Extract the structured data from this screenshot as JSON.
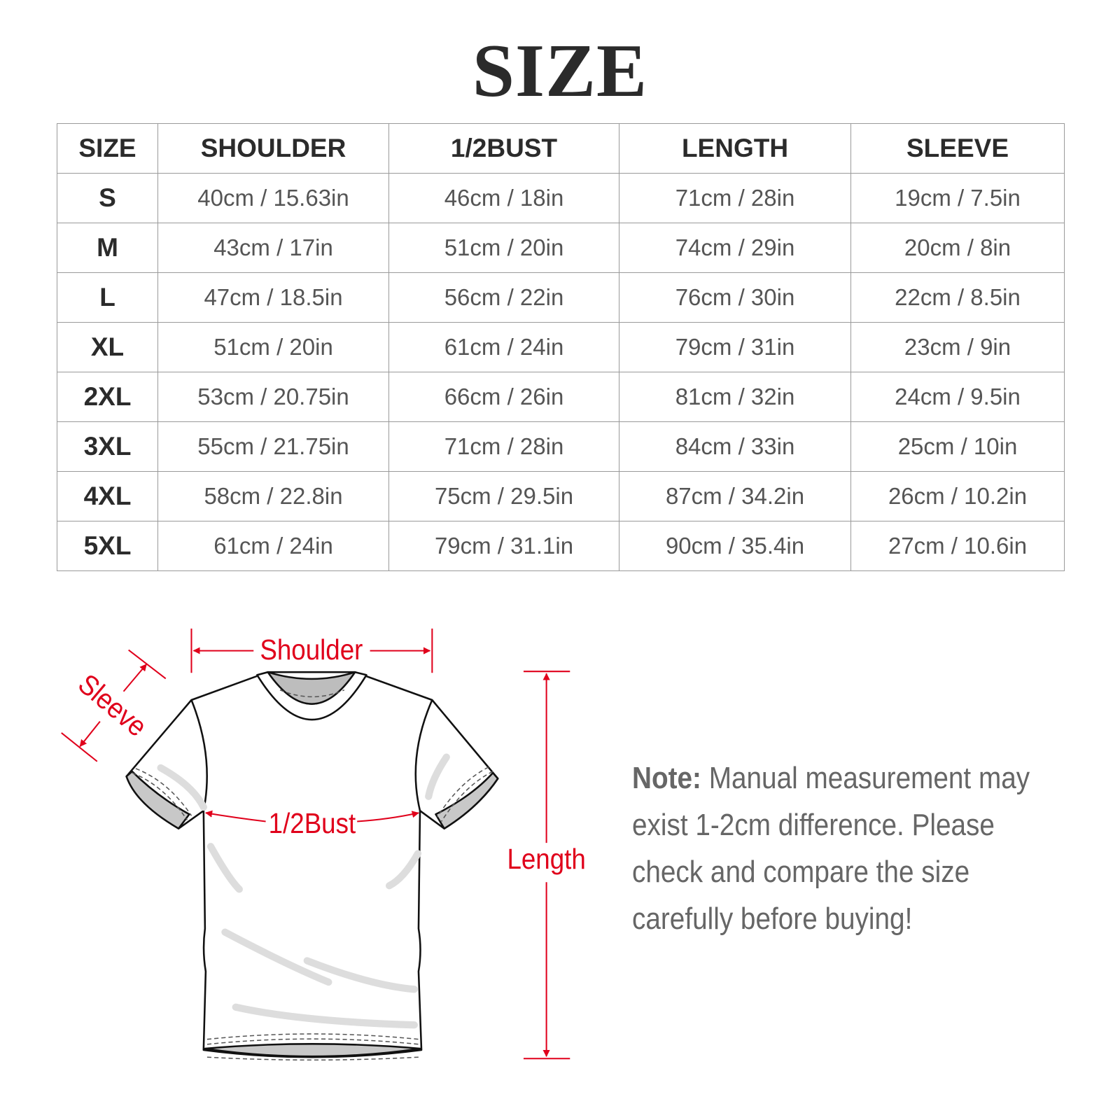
{
  "title": "SIZE",
  "table": {
    "headers": [
      "SIZE",
      "SHOULDER",
      "1/2BUST",
      "LENGTH",
      "SLEEVE"
    ],
    "rows": [
      [
        "S",
        "40cm / 15.63in",
        "46cm / 18in",
        "71cm / 28in",
        "19cm / 7.5in"
      ],
      [
        "M",
        "43cm / 17in",
        "51cm / 20in",
        "74cm / 29in",
        "20cm / 8in"
      ],
      [
        "L",
        "47cm / 18.5in",
        "56cm / 22in",
        "76cm / 30in",
        "22cm / 8.5in"
      ],
      [
        "XL",
        "51cm / 20in",
        "61cm / 24in",
        "79cm / 31in",
        "23cm / 9in"
      ],
      [
        "2XL",
        "53cm / 20.75in",
        "66cm / 26in",
        "81cm / 32in",
        "24cm / 9.5in"
      ],
      [
        "3XL",
        "55cm / 21.75in",
        "71cm / 28in",
        "84cm / 33in",
        "25cm / 10in"
      ],
      [
        "4XL",
        "58cm / 22.8in",
        "75cm / 29.5in",
        "87cm / 34.2in",
        "26cm / 10.2in"
      ],
      [
        "5XL",
        "61cm / 24in",
        "79cm / 31.1in",
        "90cm / 35.4in",
        "27cm / 10.6in"
      ]
    ]
  },
  "diagram": {
    "shoulder_label": "Shoulder",
    "sleeve_label": "Sleeve",
    "bust_label": "1/2Bust",
    "length_label": "Length",
    "accent_color": "#e0001b"
  },
  "note": {
    "label": "Note:",
    "lines": [
      "Manual measurement may",
      "exist 1-2cm difference. Please",
      "check and compare the size",
      "carefully before buying!"
    ]
  }
}
